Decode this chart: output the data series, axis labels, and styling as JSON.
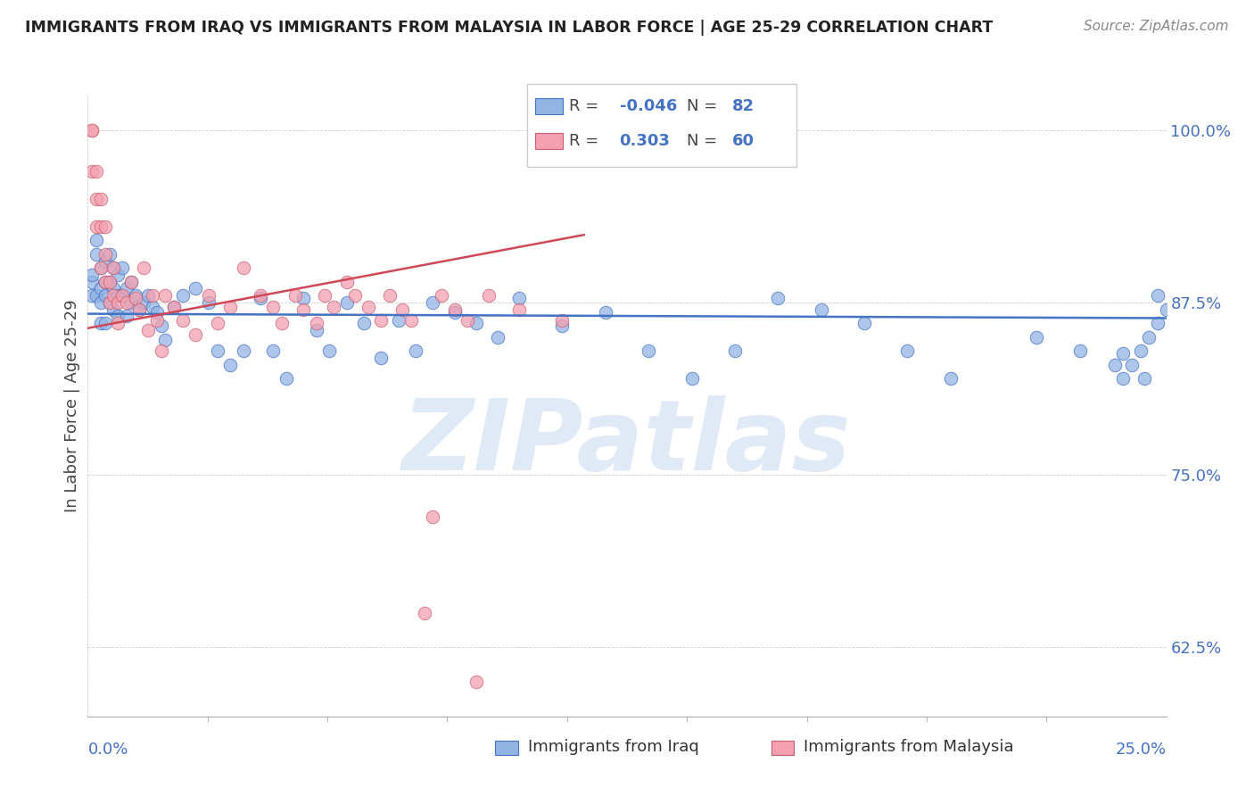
{
  "title": "IMMIGRANTS FROM IRAQ VS IMMIGRANTS FROM MALAYSIA IN LABOR FORCE | AGE 25-29 CORRELATION CHART",
  "source": "Source: ZipAtlas.com",
  "ylabel": "In Labor Force | Age 25-29",
  "x_min": 0.0,
  "x_max": 0.25,
  "y_min": 0.575,
  "y_max": 1.025,
  "y_ticks": [
    0.625,
    0.75,
    0.875,
    1.0
  ],
  "y_tick_labels": [
    "62.5%",
    "75.0%",
    "87.5%",
    "100.0%"
  ],
  "x_tick_labels": [
    "0.0%",
    "25.0%"
  ],
  "legend_iraq_R": "-0.046",
  "legend_iraq_N": "82",
  "legend_malaysia_R": "0.303",
  "legend_malaysia_N": "60",
  "legend_label_iraq": "Immigrants from Iraq",
  "legend_label_malaysia": "Immigrants from Malaysia",
  "color_iraq": "#92b4e3",
  "color_malaysia": "#f4a0b0",
  "color_trendline_iraq": "#4472c4",
  "color_trendline_malaysia": "#d04858",
  "color_tick_label": "#4472c4",
  "watermark": "ZIPatlas",
  "watermark_color": "#ccdcf0",
  "iraq_x": [
    0.001,
    0.001,
    0.001,
    0.002,
    0.002,
    0.002,
    0.003,
    0.003,
    0.003,
    0.003,
    0.004,
    0.004,
    0.004,
    0.004,
    0.005,
    0.005,
    0.005,
    0.006,
    0.006,
    0.006,
    0.007,
    0.007,
    0.007,
    0.008,
    0.008,
    0.009,
    0.009,
    0.01,
    0.01,
    0.011,
    0.012,
    0.013,
    0.014,
    0.015,
    0.016,
    0.017,
    0.018,
    0.02,
    0.022,
    0.025,
    0.028,
    0.03,
    0.033,
    0.036,
    0.04,
    0.043,
    0.046,
    0.05,
    0.053,
    0.056,
    0.06,
    0.064,
    0.068,
    0.072,
    0.076,
    0.08,
    0.085,
    0.09,
    0.095,
    0.1,
    0.11,
    0.12,
    0.13,
    0.14,
    0.15,
    0.16,
    0.17,
    0.18,
    0.19,
    0.2,
    0.22,
    0.23,
    0.24,
    0.245,
    0.248,
    0.25,
    0.248,
    0.246,
    0.244,
    0.242,
    0.24,
    0.238
  ],
  "iraq_y": [
    0.88,
    0.89,
    0.895,
    0.92,
    0.91,
    0.88,
    0.9,
    0.885,
    0.875,
    0.86,
    0.905,
    0.89,
    0.88,
    0.86,
    0.91,
    0.89,
    0.875,
    0.9,
    0.885,
    0.87,
    0.895,
    0.88,
    0.865,
    0.9,
    0.88,
    0.885,
    0.865,
    0.89,
    0.875,
    0.88,
    0.87,
    0.875,
    0.88,
    0.872,
    0.868,
    0.858,
    0.848,
    0.872,
    0.88,
    0.885,
    0.875,
    0.84,
    0.83,
    0.84,
    0.878,
    0.84,
    0.82,
    0.878,
    0.855,
    0.84,
    0.875,
    0.86,
    0.835,
    0.862,
    0.84,
    0.875,
    0.868,
    0.86,
    0.85,
    0.878,
    0.858,
    0.868,
    0.84,
    0.82,
    0.84,
    0.878,
    0.87,
    0.86,
    0.84,
    0.82,
    0.85,
    0.84,
    0.838,
    0.82,
    0.88,
    0.87,
    0.86,
    0.85,
    0.84,
    0.83,
    0.82,
    0.83
  ],
  "malaysia_x": [
    0.001,
    0.001,
    0.001,
    0.002,
    0.002,
    0.002,
    0.003,
    0.003,
    0.003,
    0.004,
    0.004,
    0.004,
    0.005,
    0.005,
    0.006,
    0.006,
    0.007,
    0.007,
    0.008,
    0.009,
    0.01,
    0.011,
    0.012,
    0.013,
    0.014,
    0.015,
    0.016,
    0.017,
    0.018,
    0.02,
    0.022,
    0.025,
    0.028,
    0.03,
    0.033,
    0.036,
    0.04,
    0.043,
    0.045,
    0.048,
    0.05,
    0.053,
    0.055,
    0.057,
    0.06,
    0.062,
    0.065,
    0.068,
    0.07,
    0.073,
    0.075,
    0.078,
    0.08,
    0.082,
    0.085,
    0.088,
    0.09,
    0.093,
    0.1,
    0.11
  ],
  "malaysia_y": [
    0.97,
    1.0,
    1.0,
    0.97,
    0.95,
    0.93,
    0.95,
    0.93,
    0.9,
    0.93,
    0.91,
    0.89,
    0.89,
    0.875,
    0.9,
    0.88,
    0.875,
    0.86,
    0.88,
    0.875,
    0.89,
    0.878,
    0.87,
    0.9,
    0.855,
    0.88,
    0.862,
    0.84,
    0.88,
    0.872,
    0.862,
    0.852,
    0.88,
    0.86,
    0.872,
    0.9,
    0.88,
    0.872,
    0.86,
    0.88,
    0.87,
    0.86,
    0.88,
    0.872,
    0.89,
    0.88,
    0.872,
    0.862,
    0.88,
    0.87,
    0.862,
    0.65,
    0.72,
    0.88,
    0.87,
    0.862,
    0.6,
    0.88,
    0.87,
    0.862
  ]
}
